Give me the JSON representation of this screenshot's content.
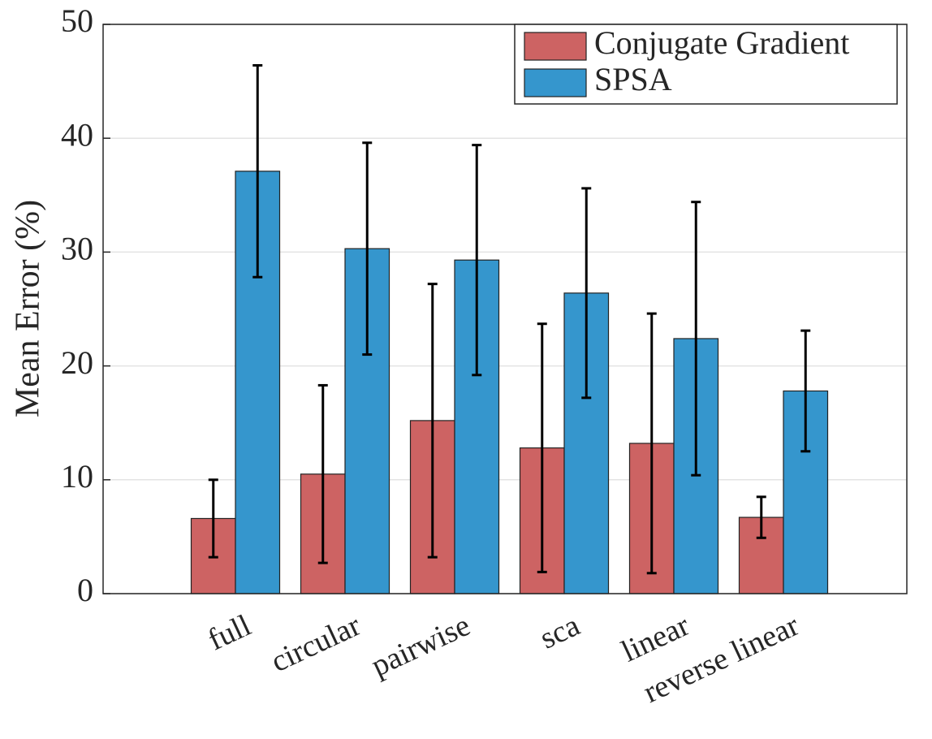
{
  "chart_data": {
    "type": "bar",
    "y_label": "Mean Error (%)",
    "categories": [
      "full",
      "circular",
      "pairwise",
      "sca",
      "linear",
      "reverse linear"
    ],
    "series": [
      {
        "name": "Conjugate Gradient",
        "color": "#cd6363",
        "values": [
          6.6,
          10.5,
          15.2,
          12.8,
          13.2,
          6.7
        ],
        "errors": [
          3.4,
          7.8,
          12.0,
          10.9,
          11.4,
          1.8
        ]
      },
      {
        "name": "SPSA",
        "color": "#3596cd",
        "values": [
          37.1,
          30.3,
          29.3,
          26.4,
          22.4,
          17.8
        ],
        "errors": [
          9.3,
          9.3,
          10.1,
          9.2,
          12.0,
          5.3
        ]
      }
    ],
    "ylim": [
      0,
      50
    ],
    "yticks": [
      0,
      10,
      20,
      30,
      40,
      50
    ],
    "grid": true,
    "legend": "top-right"
  }
}
